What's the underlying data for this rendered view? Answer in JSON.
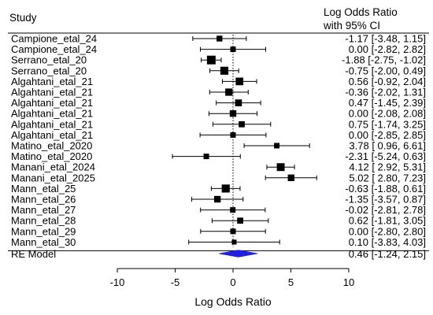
{
  "header": {
    "study": "Study",
    "effect_line1": "Log Odds Ratio",
    "effect_line2": "with 95% CI"
  },
  "chart_data": {
    "type": "forest",
    "xlabel": "Log Odds Ratio",
    "xlim": [
      -10,
      10
    ],
    "xticks": [
      -10,
      -5,
      0,
      5,
      10
    ],
    "reference_line": 0,
    "studies": [
      {
        "label": "Campione_etal_24",
        "est": -1.17,
        "lo": -3.48,
        "hi": 1.15,
        "ci_text": "-1.17 [-3.48,  1.15]",
        "weight": 0.3
      },
      {
        "label": "Campione_etal_24",
        "est": 0.0,
        "lo": -2.82,
        "hi": 2.82,
        "ci_text": "0.00 [-2.82,  2.82]",
        "weight": 0.25
      },
      {
        "label": "Serrano_etal_20",
        "est": -1.88,
        "lo": -2.75,
        "hi": -1.02,
        "ci_text": "-1.88 [-2.75, -1.02]",
        "weight": 1.0
      },
      {
        "label": "Serrano_etal_20",
        "est": -0.75,
        "lo": -2.0,
        "hi": 0.49,
        "ci_text": "-0.75 [-2.00,  0.49]",
        "weight": 0.8
      },
      {
        "label": "Algahtani_etal_21",
        "est": 0.56,
        "lo": -0.92,
        "hi": 2.04,
        "ci_text": "0.56 [-0.92,  2.04]",
        "weight": 0.7
      },
      {
        "label": "Algahtani_etal_21",
        "est": -0.36,
        "lo": -2.02,
        "hi": 1.31,
        "ci_text": "-0.36 [-2.02,  1.31]",
        "weight": 0.6
      },
      {
        "label": "Algahtani_etal_21",
        "est": 0.47,
        "lo": -1.45,
        "hi": 2.39,
        "ci_text": "0.47 [-1.45,  2.39]",
        "weight": 0.5
      },
      {
        "label": "Algahtani_etal_21",
        "est": 0.0,
        "lo": -2.08,
        "hi": 2.08,
        "ci_text": "0.00 [-2.08,  2.08]",
        "weight": 0.45
      },
      {
        "label": "Algahtani_etal_21",
        "est": 0.75,
        "lo": -1.74,
        "hi": 3.25,
        "ci_text": "0.75 [-1.74,  3.25]",
        "weight": 0.35
      },
      {
        "label": "Algahtani_etal_21",
        "est": 0.0,
        "lo": -2.85,
        "hi": 2.85,
        "ci_text": "0.00 [-2.85,  2.85]",
        "weight": 0.25
      },
      {
        "label": "Matino_etal_2020",
        "est": 3.78,
        "lo": 0.96,
        "hi": 6.61,
        "ci_text": "3.78 [ 0.96,  6.61]",
        "weight": 0.25
      },
      {
        "label": "Matino_etal_2020",
        "est": -2.31,
        "lo": -5.24,
        "hi": 0.63,
        "ci_text": "-2.31 [-5.24,  0.63]",
        "weight": 0.25
      },
      {
        "label": "Manani_etal_2024",
        "est": 4.12,
        "lo": 2.92,
        "hi": 5.31,
        "ci_text": "4.12 [ 2.92,  5.31]",
        "weight": 0.75
      },
      {
        "label": "Manani_etal_2025",
        "est": 5.02,
        "lo": 2.8,
        "hi": 7.23,
        "ci_text": "5.02 [ 2.80,  7.23]",
        "weight": 0.45
      },
      {
        "label": "Mann_etal_25",
        "est": -0.63,
        "lo": -1.88,
        "hi": 0.61,
        "ci_text": "-0.63 [-1.88,  0.61]",
        "weight": 0.8
      },
      {
        "label": "Mann_etal_26",
        "est": -1.35,
        "lo": -3.57,
        "hi": 0.87,
        "ci_text": "-1.35 [-3.57,  0.87]",
        "weight": 0.45
      },
      {
        "label": "Mann_etal_27",
        "est": -0.02,
        "lo": -2.81,
        "hi": 2.78,
        "ci_text": "-0.02 [-2.81,  2.78]",
        "weight": 0.25
      },
      {
        "label": "Mann_etal_28",
        "est": 0.62,
        "lo": -1.81,
        "hi": 3.05,
        "ci_text": "0.62 [-1.81,  3.05]",
        "weight": 0.35
      },
      {
        "label": "Mann_etal_29",
        "est": 0.0,
        "lo": -2.8,
        "hi": 2.8,
        "ci_text": "0.00 [-2.80,  2.80]",
        "weight": 0.25
      },
      {
        "label": "Mann_etal_30",
        "est": 0.1,
        "lo": -3.83,
        "hi": 4.03,
        "ci_text": "0.10 [-3.83,  4.03]",
        "weight": 0.15
      }
    ],
    "summary": {
      "label": "RE Model",
      "est": 0.46,
      "lo": -1.24,
      "hi": 2.15,
      "ci_text": "0.46 [-1.24,  2.15]",
      "color": "#1f1fe0"
    }
  }
}
